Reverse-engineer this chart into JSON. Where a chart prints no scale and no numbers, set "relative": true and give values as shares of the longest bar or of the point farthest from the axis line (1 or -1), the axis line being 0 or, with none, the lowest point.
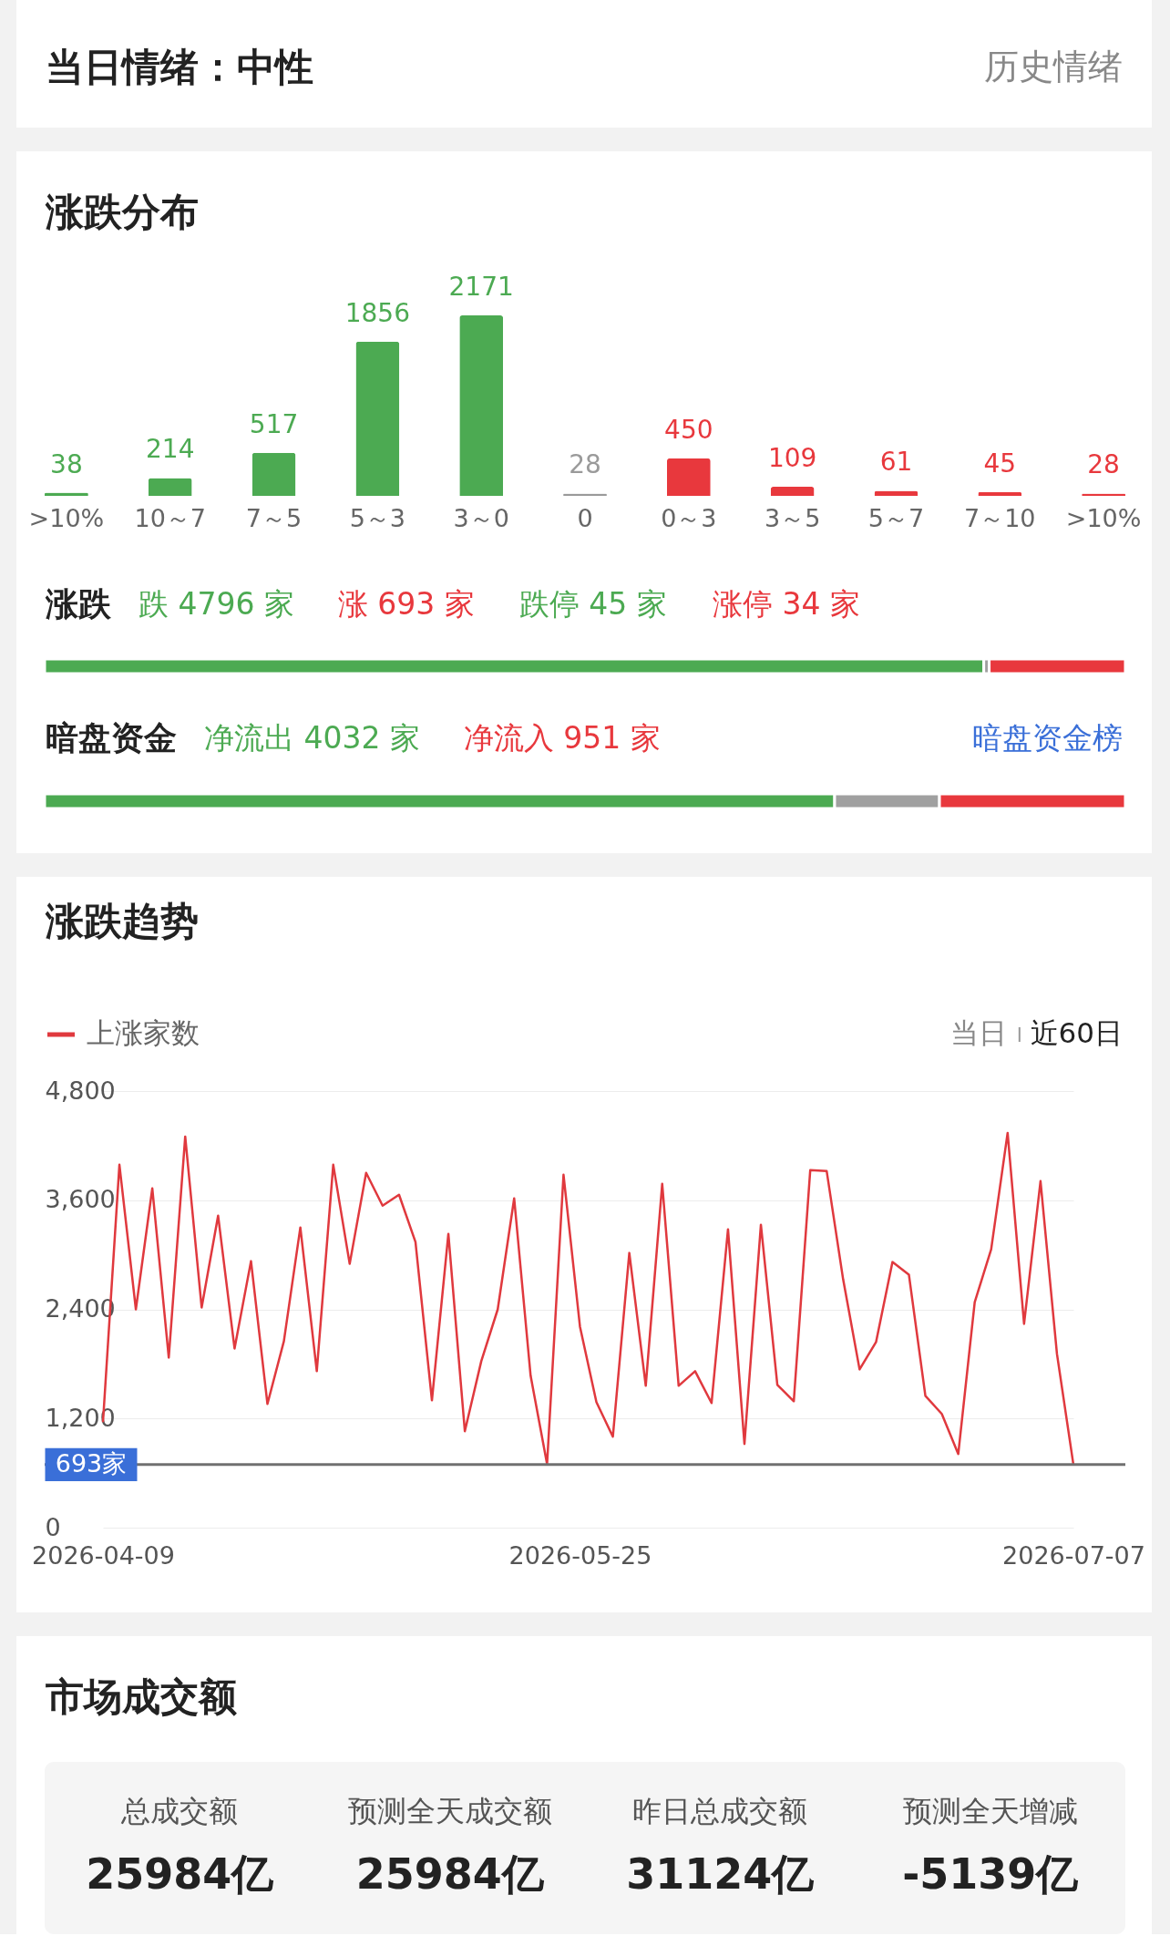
{
  "chart_data": [
    {
      "type": "other",
      "title": "当日情绪：中性",
      "annotations": [
        "历史情绪"
      ]
    },
    {
      "type": "bar",
      "title": "涨跌分布",
      "categories": [
        ">10%",
        "10～7",
        "7～5",
        "5～3",
        "3～0",
        "0",
        "0～3",
        "3～5",
        "5～7",
        "7～10",
        ">10%"
      ],
      "values": [
        38,
        214,
        517,
        1856,
        2171,
        28,
        450,
        109,
        61,
        45,
        28
      ],
      "colors": [
        "#4caa52",
        "#4caa52",
        "#4caa52",
        "#4caa52",
        "#4caa52",
        "#9a9a9a",
        "#e8383d",
        "#e8383d",
        "#e8383d",
        "#e8383d",
        "#e8383d"
      ],
      "data_labels": true
    },
    {
      "type": "bar",
      "orientation": "horizontal",
      "stacked": true,
      "relative": true,
      "title": "涨跌",
      "categories": [
        null
      ],
      "series": [
        {
          "color": "#4caa52",
          "values": [
            0.869
          ]
        },
        {
          "color": "#a0a0a0",
          "values": [
            0.005
          ]
        },
        {
          "color": "#e8383d",
          "values": [
            0.126
          ]
        }
      ],
      "annotations": [
        "跌 4796 家",
        "涨 693 家",
        "跌停 45 家",
        "涨停 34 家"
      ]
    },
    {
      "type": "bar",
      "orientation": "horizontal",
      "stacked": true,
      "relative": true,
      "title": "暗盘资金",
      "categories": [
        null
      ],
      "series": [
        {
          "color": "#4caa52",
          "values": [
            0.731
          ]
        },
        {
          "color": "#a0a0a0",
          "values": [
            0.097
          ]
        },
        {
          "color": "#e8383d",
          "values": [
            0.172
          ]
        }
      ],
      "annotations": [
        "净流出 4032 家",
        "净流入 951 家",
        "暗盘资金榜"
      ]
    },
    {
      "type": "line",
      "title": "涨跌趋势",
      "categories": [
        "2026-04-09",
        null,
        null,
        null,
        null,
        null,
        null,
        null,
        null,
        null,
        null,
        null,
        null,
        null,
        null,
        null,
        null,
        null,
        null,
        null,
        null,
        null,
        null,
        null,
        null,
        null,
        null,
        null,
        null,
        "2026-05-25",
        null,
        null,
        null,
        null,
        null,
        null,
        null,
        null,
        null,
        null,
        null,
        null,
        null,
        null,
        null,
        null,
        null,
        null,
        null,
        null,
        null,
        null,
        null,
        null,
        null,
        null,
        null,
        null,
        null,
        "2026-07-07"
      ],
      "series": [
        {
          "name": "上涨家数",
          "color": "#e0393e",
          "values": [
            1160,
            3990,
            2400,
            3730,
            1870,
            4300,
            2420,
            3430,
            1970,
            2930,
            1360,
            2050,
            3300,
            1720,
            3990,
            2900,
            3900,
            3540,
            3660,
            3140,
            1400,
            3230,
            1060,
            1830,
            2400,
            3620,
            1670,
            700,
            3880,
            2210,
            1380,
            1000,
            3020,
            1560,
            3780,
            1560,
            1720,
            1370,
            3280,
            920,
            3330,
            1570,
            1390,
            3930,
            3920,
            2730,
            1740,
            2040,
            2920,
            2780,
            1450,
            1250,
            810,
            2480,
            3060,
            4340,
            2240,
            3810,
            1910,
            693
          ]
        }
      ],
      "ylim": [
        0,
        4800
      ],
      "yticks": [
        0,
        {
          "value": 1200,
          "label": "1,200"
        },
        {
          "value": 2400,
          "label": "2,400"
        },
        {
          "value": 3600,
          "label": "3,600"
        },
        {
          "value": 4800,
          "label": "4,800"
        }
      ],
      "grid": "y",
      "legend": "top left",
      "line_style": "solid",
      "ref_lines": [
        {
          "axis": "y",
          "value": 693,
          "label": "693家",
          "color": "#707070"
        }
      ],
      "annotations": [
        "当日",
        "近60日"
      ]
    },
    {
      "type": "other",
      "title": "市场成交额",
      "categories": [
        "总成交额",
        "预测全天成交额",
        "昨日总成交额",
        "预测全天增减"
      ],
      "value_labels": [
        "25984亿",
        "25984亿",
        "31124亿",
        "-5139亿"
      ]
    }
  ]
}
